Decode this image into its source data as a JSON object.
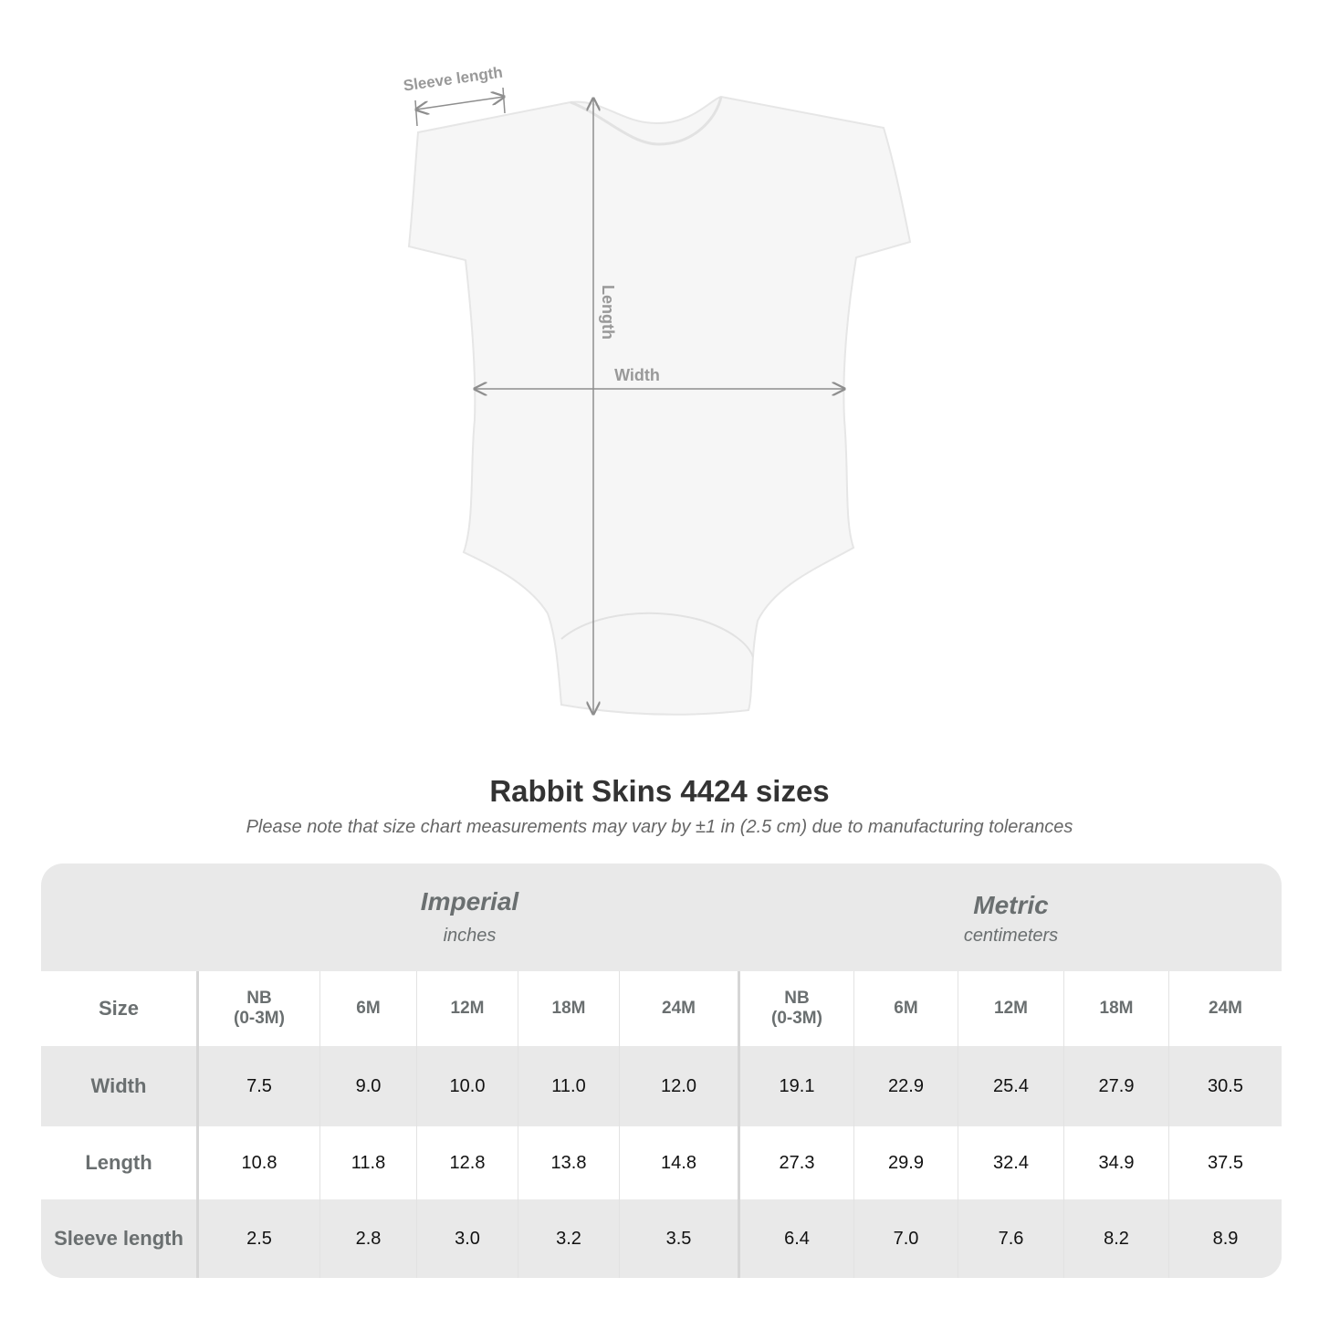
{
  "garment": {
    "labels": {
      "sleeve": "Sleeve length",
      "length": "Length",
      "width": "Width"
    }
  },
  "header": {
    "title": "Rabbit Skins 4424 sizes",
    "note": "Please note that size chart measurements may vary by ±1 in (2.5 cm) due to manufacturing tolerances"
  },
  "table": {
    "imperial": {
      "label": "Imperial",
      "unit": "inches"
    },
    "metric": {
      "label": "Metric",
      "unit": "centimeters"
    },
    "size_label": "Size",
    "sizes": [
      "NB\n(0-3M)",
      "6M",
      "12M",
      "18M",
      "24M"
    ],
    "rows": [
      {
        "label": "Width",
        "imperial": [
          "7.5",
          "9.0",
          "10.0",
          "11.0",
          "12.0"
        ],
        "metric": [
          "19.1",
          "22.9",
          "25.4",
          "27.9",
          "30.5"
        ]
      },
      {
        "label": "Length",
        "imperial": [
          "10.8",
          "11.8",
          "12.8",
          "13.8",
          "14.8"
        ],
        "metric": [
          "27.3",
          "29.9",
          "32.4",
          "34.9",
          "37.5"
        ]
      },
      {
        "label": "Sleeve length",
        "imperial": [
          "2.5",
          "2.8",
          "3.0",
          "3.2",
          "3.5"
        ],
        "metric": [
          "6.4",
          "7.0",
          "7.6",
          "8.2",
          "8.9"
        ]
      }
    ]
  },
  "colors": {
    "header_text": "#6a6f70",
    "band": "#e9e9e9",
    "arrow": "#8e8e8e"
  }
}
